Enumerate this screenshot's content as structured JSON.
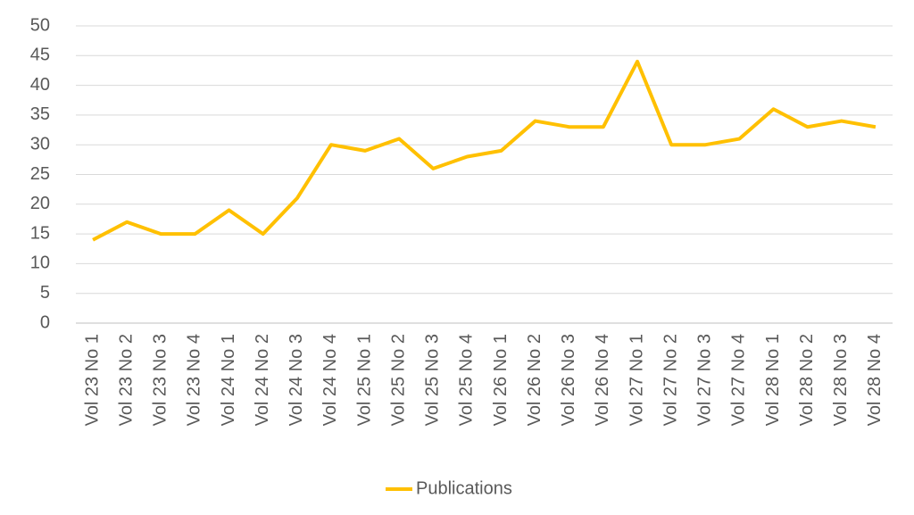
{
  "chart_data": {
    "type": "line",
    "categories": [
      "Vol 23 No 1",
      "Vol 23 No 2",
      "Vol 23 No 3",
      "Vol 23 No 4",
      "Vol 24 No 1",
      "Vol 24 No 2",
      "Vol 24 No 3",
      "Vol 24 No 4",
      "Vol 25 No 1",
      "Vol 25 No 2",
      "Vol 25 No 3",
      "Vol 25 No 4",
      "Vol 26 No 1",
      "Vol 26 No 2",
      "Vol 26 No 3",
      "Vol 26 No 4",
      "Vol 27 No 1",
      "Vol 27 No 2",
      "Vol 27 No 3",
      "Vol 27 No 4",
      "Vol 28 No 1",
      "Vol 28 No 2",
      "Vol 28 No 3",
      "Vol 28 No 4"
    ],
    "series": [
      {
        "name": "Publications",
        "color": "#ffc000",
        "values": [
          14,
          17,
          15,
          15,
          19,
          15,
          21,
          30,
          29,
          31,
          26,
          28,
          29,
          34,
          33,
          33,
          44,
          30,
          30,
          31,
          36,
          33,
          34,
          33
        ]
      }
    ],
    "ylim": [
      0,
      50
    ],
    "yticks": [
      0,
      5,
      10,
      15,
      20,
      25,
      30,
      35,
      40,
      45,
      50
    ],
    "grid": true,
    "legend": "bottom"
  }
}
